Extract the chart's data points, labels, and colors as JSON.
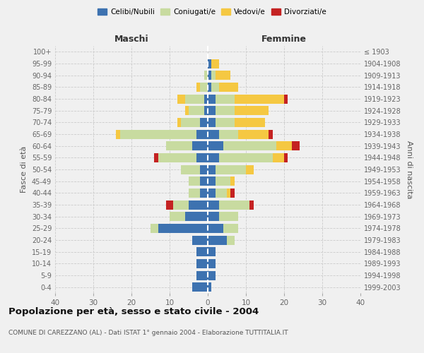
{
  "age_groups": [
    "0-4",
    "5-9",
    "10-14",
    "15-19",
    "20-24",
    "25-29",
    "30-34",
    "35-39",
    "40-44",
    "45-49",
    "50-54",
    "55-59",
    "60-64",
    "65-69",
    "70-74",
    "75-79",
    "80-84",
    "85-89",
    "90-94",
    "95-99",
    "100+"
  ],
  "birth_years": [
    "1999-2003",
    "1994-1998",
    "1989-1993",
    "1984-1988",
    "1979-1983",
    "1974-1978",
    "1969-1973",
    "1964-1968",
    "1959-1963",
    "1954-1958",
    "1949-1953",
    "1944-1948",
    "1939-1943",
    "1934-1938",
    "1929-1933",
    "1924-1928",
    "1919-1923",
    "1914-1918",
    "1909-1913",
    "1904-1908",
    "≤ 1903"
  ],
  "maschi": {
    "celibi": [
      4,
      3,
      3,
      3,
      4,
      13,
      6,
      5,
      2,
      2,
      2,
      3,
      4,
      3,
      2,
      1,
      1,
      0,
      0,
      0,
      0
    ],
    "coniugati": [
      0,
      0,
      0,
      0,
      0,
      2,
      4,
      4,
      3,
      3,
      5,
      10,
      7,
      20,
      5,
      4,
      5,
      2,
      1,
      0,
      0
    ],
    "vedovi": [
      0,
      0,
      0,
      0,
      0,
      0,
      0,
      0,
      0,
      0,
      0,
      0,
      0,
      1,
      1,
      1,
      2,
      1,
      0,
      0,
      0
    ],
    "divorziati": [
      0,
      0,
      0,
      0,
      0,
      0,
      0,
      2,
      0,
      0,
      0,
      1,
      0,
      0,
      0,
      0,
      0,
      0,
      0,
      0,
      0
    ]
  },
  "femmine": {
    "nubili": [
      1,
      2,
      2,
      2,
      5,
      4,
      3,
      3,
      2,
      2,
      2,
      3,
      4,
      3,
      2,
      2,
      2,
      1,
      1,
      1,
      0
    ],
    "coniugate": [
      0,
      0,
      0,
      0,
      2,
      4,
      5,
      8,
      3,
      4,
      8,
      14,
      14,
      5,
      5,
      5,
      5,
      2,
      1,
      0,
      0
    ],
    "vedove": [
      0,
      0,
      0,
      0,
      0,
      0,
      0,
      0,
      1,
      1,
      2,
      3,
      4,
      8,
      8,
      9,
      13,
      5,
      4,
      2,
      0
    ],
    "divorziate": [
      0,
      0,
      0,
      0,
      0,
      0,
      0,
      1,
      1,
      0,
      0,
      1,
      2,
      1,
      0,
      0,
      1,
      0,
      0,
      0,
      0
    ]
  },
  "colors": {
    "celibi_nubili": "#3d72b0",
    "coniugati": "#c8dba0",
    "vedovi": "#f5c842",
    "divorziati": "#c42222"
  },
  "xlim": 40,
  "title": "Popolazione per età, sesso e stato civile - 2004",
  "subtitle": "COMUNE DI CAREZZANO (AL) - Dati ISTAT 1° gennaio 2004 - Elaborazione TUTTITALIA.IT",
  "ylabel_left": "Fasce di età",
  "ylabel_right": "Anni di nascita",
  "label_maschi": "Maschi",
  "label_femmine": "Femmine",
  "bg_color": "#f0f0f0",
  "grid_color": "#cccccc",
  "legend_labels": [
    "Celibi/Nubili",
    "Coniugati/e",
    "Vedovi/e",
    "Divorziati/e"
  ]
}
